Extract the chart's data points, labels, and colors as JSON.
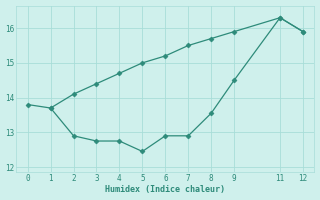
{
  "upper_x": [
    0,
    1,
    2,
    3,
    4,
    5,
    6,
    7,
    8,
    9,
    11,
    12
  ],
  "upper_y": [
    13.8,
    13.7,
    14.1,
    14.4,
    14.7,
    15.0,
    15.2,
    15.5,
    15.7,
    15.9,
    16.3,
    15.9
  ],
  "lower_x": [
    1,
    2,
    3,
    4,
    5,
    6,
    7,
    8,
    9,
    11,
    12
  ],
  "lower_y": [
    13.7,
    12.9,
    12.75,
    12.75,
    12.45,
    12.9,
    12.9,
    13.55,
    14.5,
    16.3,
    15.9
  ],
  "line_color": "#2e8b7a",
  "bg_color": "#cff0ec",
  "grid_color": "#a8ddd8",
  "xlabel": "Humidex (Indice chaleur)",
  "xlim": [
    -0.5,
    12.5
  ],
  "ylim": [
    11.85,
    16.65
  ],
  "yticks": [
    12,
    13,
    14,
    15,
    16
  ],
  "xticks": [
    0,
    1,
    2,
    3,
    4,
    5,
    6,
    7,
    8,
    9,
    11,
    12
  ],
  "marker": "D",
  "markersize": 2.5,
  "linewidth": 0.9
}
